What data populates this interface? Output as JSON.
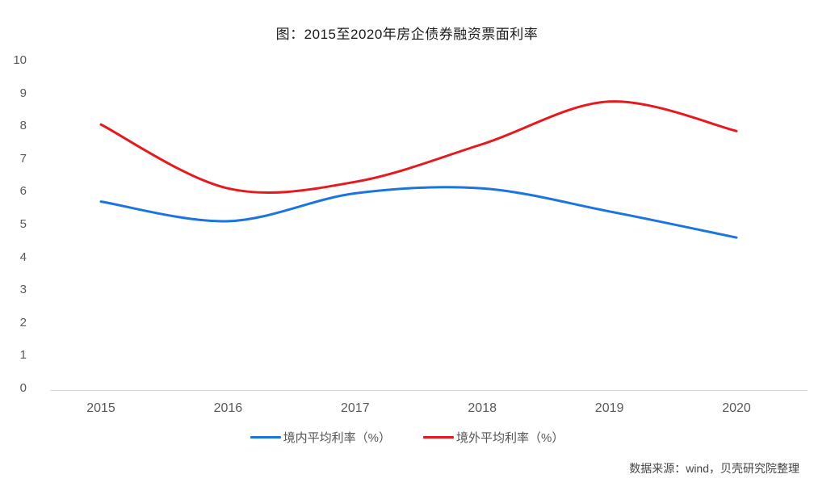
{
  "chart_data": {
    "type": "line",
    "title": "图：2015至2020年房企债券融资票面利率",
    "categories": [
      "2015",
      "2016",
      "2017",
      "2018",
      "2019",
      "2020"
    ],
    "y_ticks": [
      "0",
      "1",
      "2",
      "3",
      "4",
      "5",
      "6",
      "7",
      "8",
      "9",
      "10"
    ],
    "ylim": [
      0,
      10
    ],
    "xlabel": "",
    "ylabel": "",
    "grid": false,
    "axis_line_color": "#d9d9d9",
    "legend_position": "bottom-center",
    "line_smoothing": "spline",
    "series": [
      {
        "name": "境内平均利率（%）",
        "color": "#1b75e1",
        "values": [
          5.7,
          5.1,
          5.95,
          6.1,
          5.4,
          4.6
        ]
      },
      {
        "name": "境外平均利率（%）",
        "color": "#e8191c",
        "values": [
          8.05,
          6.1,
          6.3,
          7.45,
          8.75,
          7.85
        ]
      }
    ]
  },
  "footer": {
    "source": "数据来源：wind，贝壳研究院整理"
  }
}
